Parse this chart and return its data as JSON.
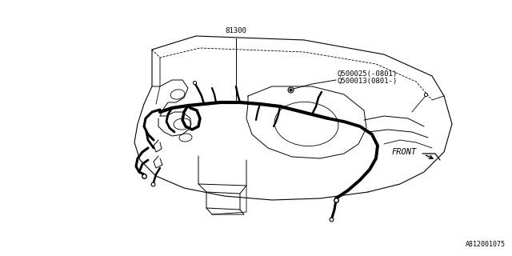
{
  "bg_color": "#ffffff",
  "lc": "#000000",
  "label_81300": "81300",
  "label_q1": "Q500025(-0801)",
  "label_q2": "Q500013(0801-)",
  "label_front": "FRONT",
  "label_part": "A812001075",
  "font_size_small": 6.5,
  "font_size_front": 7.5,
  "font_size_part": 6
}
